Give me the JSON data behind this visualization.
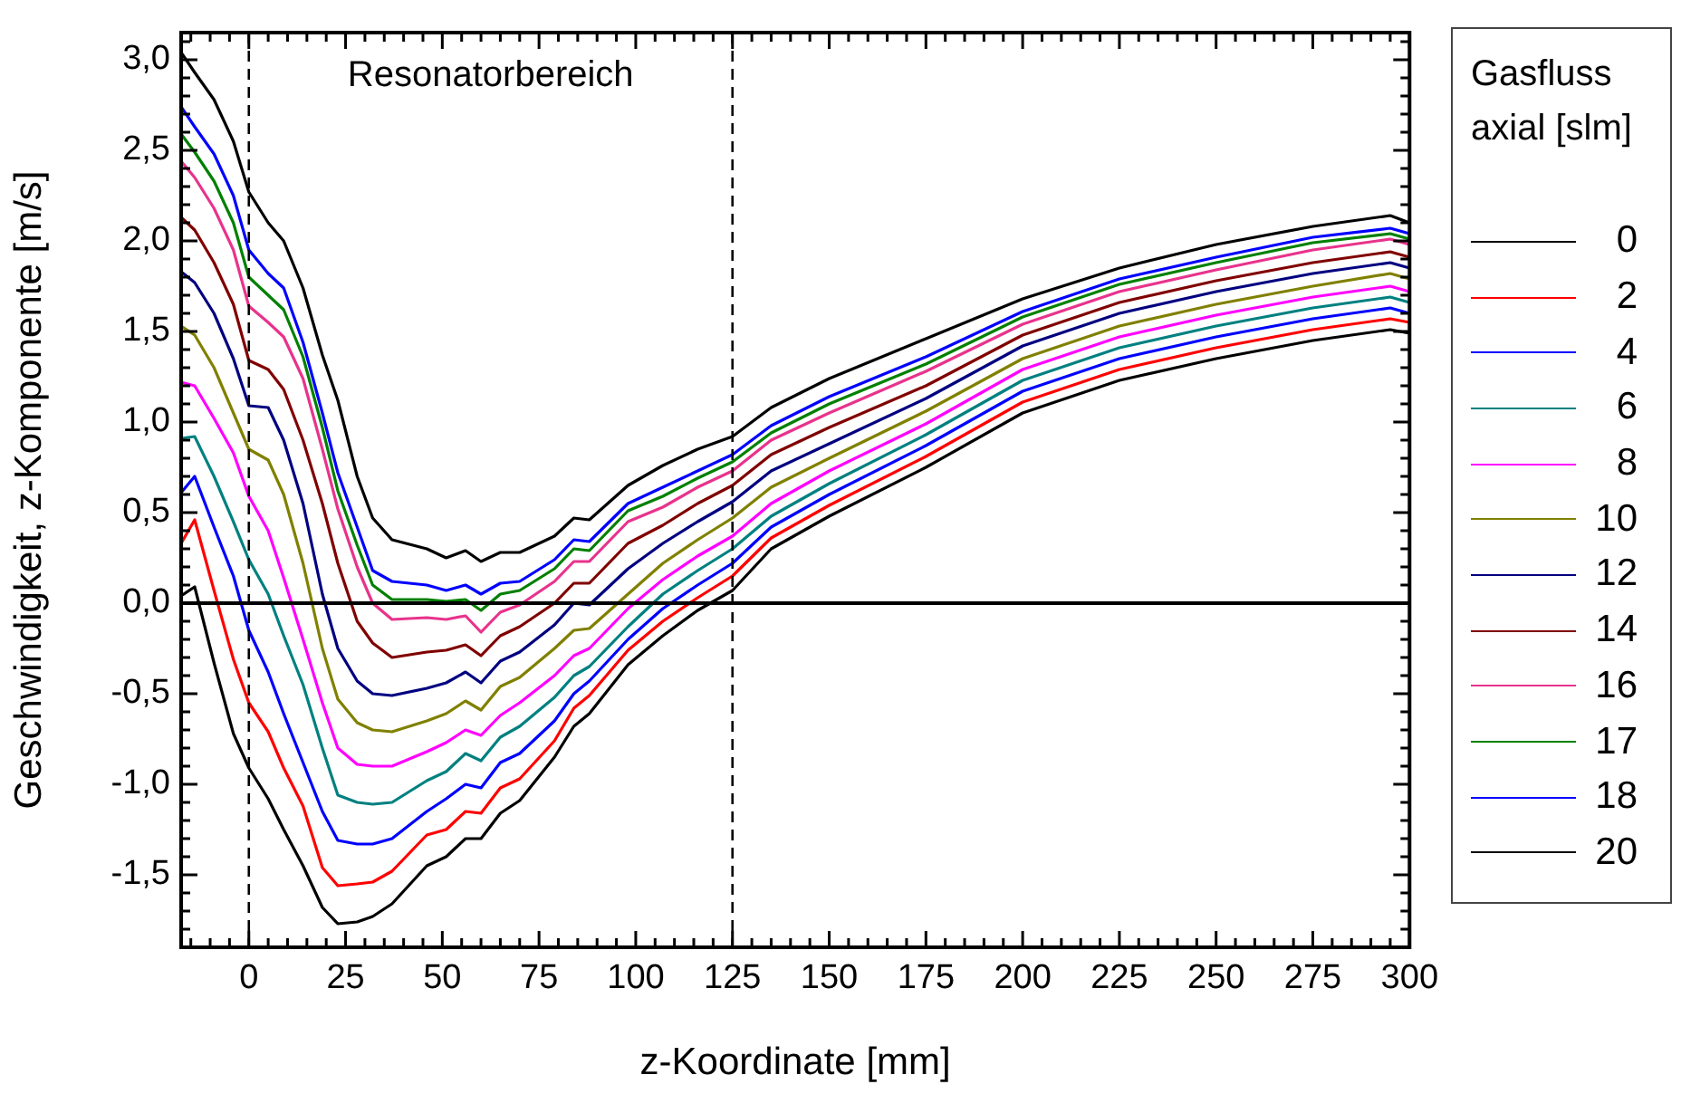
{
  "chart_data": {
    "type": "line",
    "xlabel": "z-Koordinate [mm]",
    "ylabel": "Geschwindigkeit, z-Komponente [m/s]",
    "legend_title": "Gasfluss axial [slm]",
    "legend": "right",
    "grid": false,
    "line_style": "solid",
    "marker": "none",
    "annotations": [
      "Resonatorbereich"
    ],
    "ref_lines": [
      {
        "axis": "x",
        "value": 0,
        "line_style": "dashed",
        "color": "#000000"
      },
      {
        "axis": "x",
        "value": 125,
        "line_style": "dashed",
        "color": "#000000"
      },
      {
        "axis": "y",
        "value": 0,
        "line_style": "solid",
        "color": "#000000"
      }
    ],
    "xlim": [
      -17.5,
      300
    ],
    "ylim": [
      -1.9,
      3.15
    ],
    "xticks": [
      {
        "value": -15,
        "label": null
      },
      {
        "value": -10,
        "label": null
      },
      {
        "value": -5,
        "label": null
      },
      0,
      {
        "value": 5,
        "label": null
      },
      {
        "value": 10,
        "label": null
      },
      {
        "value": 15,
        "label": null
      },
      {
        "value": 20,
        "label": null
      },
      25,
      {
        "value": 30,
        "label": null
      },
      {
        "value": 35,
        "label": null
      },
      {
        "value": 40,
        "label": null
      },
      {
        "value": 45,
        "label": null
      },
      50,
      {
        "value": 55,
        "label": null
      },
      {
        "value": 60,
        "label": null
      },
      {
        "value": 65,
        "label": null
      },
      {
        "value": 70,
        "label": null
      },
      75,
      {
        "value": 80,
        "label": null
      },
      {
        "value": 85,
        "label": null
      },
      {
        "value": 90,
        "label": null
      },
      {
        "value": 95,
        "label": null
      },
      100,
      {
        "value": 105,
        "label": null
      },
      {
        "value": 110,
        "label": null
      },
      {
        "value": 115,
        "label": null
      },
      {
        "value": 120,
        "label": null
      },
      125,
      {
        "value": 130,
        "label": null
      },
      {
        "value": 135,
        "label": null
      },
      {
        "value": 140,
        "label": null
      },
      {
        "value": 145,
        "label": null
      },
      150,
      {
        "value": 155,
        "label": null
      },
      {
        "value": 160,
        "label": null
      },
      {
        "value": 165,
        "label": null
      },
      {
        "value": 170,
        "label": null
      },
      175,
      {
        "value": 180,
        "label": null
      },
      {
        "value": 185,
        "label": null
      },
      {
        "value": 190,
        "label": null
      },
      {
        "value": 195,
        "label": null
      },
      200,
      {
        "value": 205,
        "label": null
      },
      {
        "value": 210,
        "label": null
      },
      {
        "value": 215,
        "label": null
      },
      {
        "value": 220,
        "label": null
      },
      225,
      {
        "value": 230,
        "label": null
      },
      {
        "value": 235,
        "label": null
      },
      {
        "value": 240,
        "label": null
      },
      {
        "value": 245,
        "label": null
      },
      250,
      {
        "value": 255,
        "label": null
      },
      {
        "value": 260,
        "label": null
      },
      {
        "value": 265,
        "label": null
      },
      {
        "value": 270,
        "label": null
      },
      275,
      {
        "value": 280,
        "label": null
      },
      {
        "value": 285,
        "label": null
      },
      {
        "value": 290,
        "label": null
      },
      {
        "value": 295,
        "label": null
      },
      300
    ],
    "yticks": [
      {
        "value": -1.9,
        "label": null
      },
      {
        "value": -1.8,
        "label": null
      },
      {
        "value": -1.7,
        "label": null
      },
      {
        "value": -1.6,
        "label": null
      },
      {
        "value": -1.5,
        "label": "-1,5"
      },
      {
        "value": -1.4,
        "label": null
      },
      {
        "value": -1.3,
        "label": null
      },
      {
        "value": -1.2,
        "label": null
      },
      {
        "value": -1.1,
        "label": null
      },
      {
        "value": -1.0,
        "label": "-1,0"
      },
      {
        "value": -0.9,
        "label": null
      },
      {
        "value": -0.8,
        "label": null
      },
      {
        "value": -0.7,
        "label": null
      },
      {
        "value": -0.6,
        "label": null
      },
      {
        "value": -0.5,
        "label": "-0,5"
      },
      {
        "value": -0.4,
        "label": null
      },
      {
        "value": -0.3,
        "label": null
      },
      {
        "value": -0.2,
        "label": null
      },
      {
        "value": -0.1,
        "label": null
      },
      {
        "value": 0,
        "label": "0,0"
      },
      {
        "value": 0.1,
        "label": null
      },
      {
        "value": 0.2,
        "label": null
      },
      {
        "value": 0.3,
        "label": null
      },
      {
        "value": 0.4,
        "label": null
      },
      {
        "value": 0.5,
        "label": "0,5"
      },
      {
        "value": 0.6,
        "label": null
      },
      {
        "value": 0.7,
        "label": null
      },
      {
        "value": 0.8,
        "label": null
      },
      {
        "value": 0.9,
        "label": null
      },
      {
        "value": 1.0,
        "label": "1,0"
      },
      {
        "value": 1.1,
        "label": null
      },
      {
        "value": 1.2,
        "label": null
      },
      {
        "value": 1.3,
        "label": null
      },
      {
        "value": 1.4,
        "label": null
      },
      {
        "value": 1.5,
        "label": "1,5"
      },
      {
        "value": 1.6,
        "label": null
      },
      {
        "value": 1.7,
        "label": null
      },
      {
        "value": 1.8,
        "label": null
      },
      {
        "value": 1.9,
        "label": null
      },
      {
        "value": 2.0,
        "label": "2,0"
      },
      {
        "value": 2.1,
        "label": null
      },
      {
        "value": 2.2,
        "label": null
      },
      {
        "value": 2.3,
        "label": null
      },
      {
        "value": 2.4,
        "label": null
      },
      {
        "value": 2.5,
        "label": "2,5"
      },
      {
        "value": 2.6,
        "label": null
      },
      {
        "value": 2.7,
        "label": null
      },
      {
        "value": 2.8,
        "label": null
      },
      {
        "value": 2.9,
        "label": null
      },
      {
        "value": 3.0,
        "label": "3,0"
      },
      {
        "value": 3.1,
        "label": null
      }
    ],
    "x": [
      -17.5,
      -14,
      -9,
      -4,
      0,
      5,
      9,
      14,
      19,
      23,
      28,
      32,
      37,
      46,
      51,
      56,
      60,
      65,
      70,
      79,
      84,
      88,
      98,
      107,
      116,
      125,
      135,
      150,
      175,
      200,
      225,
      250,
      275,
      295,
      300
    ],
    "series": [
      {
        "name": "0",
        "color": "#000000",
        "values": [
          0.04,
          0.09,
          -0.33,
          -0.72,
          -0.91,
          -1.08,
          -1.25,
          -1.45,
          -1.68,
          -1.77,
          -1.76,
          -1.73,
          -1.66,
          -1.45,
          -1.4,
          -1.3,
          -1.3,
          -1.16,
          -1.09,
          -0.85,
          -0.68,
          -0.61,
          -0.34,
          -0.18,
          -0.04,
          0.07,
          0.3,
          0.48,
          0.75,
          1.05,
          1.23,
          1.35,
          1.45,
          1.51,
          1.49
        ]
      },
      {
        "name": "2",
        "color": "#ff0000",
        "values": [
          0.33,
          0.46,
          0.07,
          -0.31,
          -0.55,
          -0.71,
          -0.91,
          -1.12,
          -1.46,
          -1.56,
          -1.55,
          -1.54,
          -1.48,
          -1.28,
          -1.25,
          -1.15,
          -1.16,
          -1.02,
          -0.97,
          -0.76,
          -0.58,
          -0.51,
          -0.26,
          -0.1,
          0.03,
          0.15,
          0.36,
          0.54,
          0.81,
          1.11,
          1.29,
          1.41,
          1.51,
          1.57,
          1.55
        ]
      },
      {
        "name": "4",
        "color": "#0000ff",
        "values": [
          0.61,
          0.7,
          0.42,
          0.15,
          -0.15,
          -0.38,
          -0.61,
          -0.88,
          -1.15,
          -1.31,
          -1.33,
          -1.33,
          -1.3,
          -1.15,
          -1.08,
          -1.0,
          -1.02,
          -0.88,
          -0.83,
          -0.65,
          -0.5,
          -0.43,
          -0.2,
          -0.03,
          0.1,
          0.22,
          0.42,
          0.6,
          0.87,
          1.17,
          1.35,
          1.47,
          1.57,
          1.63,
          1.6
        ]
      },
      {
        "name": "6",
        "color": "#008080",
        "values": [
          0.91,
          0.92,
          0.7,
          0.45,
          0.24,
          0.05,
          -0.18,
          -0.45,
          -0.8,
          -1.06,
          -1.1,
          -1.11,
          -1.1,
          -0.98,
          -0.93,
          -0.83,
          -0.87,
          -0.74,
          -0.68,
          -0.52,
          -0.4,
          -0.35,
          -0.13,
          0.05,
          0.18,
          0.3,
          0.48,
          0.66,
          0.93,
          1.23,
          1.41,
          1.53,
          1.63,
          1.69,
          1.66
        ]
      },
      {
        "name": "8",
        "color": "#ff00ff",
        "values": [
          1.22,
          1.2,
          1.02,
          0.83,
          0.59,
          0.4,
          0.14,
          -0.2,
          -0.55,
          -0.8,
          -0.89,
          -0.9,
          -0.9,
          -0.82,
          -0.77,
          -0.7,
          -0.73,
          -0.62,
          -0.55,
          -0.4,
          -0.29,
          -0.25,
          -0.03,
          0.13,
          0.26,
          0.37,
          0.55,
          0.73,
          0.99,
          1.29,
          1.47,
          1.59,
          1.69,
          1.75,
          1.72
        ]
      },
      {
        "name": "10",
        "color": "#808000",
        "values": [
          1.53,
          1.48,
          1.3,
          1.05,
          0.85,
          0.79,
          0.6,
          0.22,
          -0.25,
          -0.53,
          -0.66,
          -0.7,
          -0.71,
          -0.65,
          -0.61,
          -0.54,
          -0.59,
          -0.46,
          -0.41,
          -0.25,
          -0.15,
          -0.14,
          0.05,
          0.22,
          0.35,
          0.47,
          0.64,
          0.8,
          1.06,
          1.35,
          1.53,
          1.65,
          1.75,
          1.82,
          1.79
        ]
      },
      {
        "name": "12",
        "color": "#000080",
        "values": [
          1.83,
          1.77,
          1.6,
          1.35,
          1.09,
          1.08,
          0.9,
          0.55,
          0.05,
          -0.25,
          -0.43,
          -0.5,
          -0.51,
          -0.47,
          -0.44,
          -0.38,
          -0.44,
          -0.32,
          -0.27,
          -0.12,
          0.0,
          -0.01,
          0.19,
          0.33,
          0.45,
          0.56,
          0.73,
          0.88,
          1.13,
          1.42,
          1.6,
          1.72,
          1.82,
          1.88,
          1.85
        ]
      },
      {
        "name": "14",
        "color": "#800000",
        "values": [
          2.13,
          2.06,
          1.88,
          1.65,
          1.34,
          1.29,
          1.18,
          0.9,
          0.55,
          0.22,
          -0.1,
          -0.22,
          -0.3,
          -0.27,
          -0.26,
          -0.23,
          -0.29,
          -0.18,
          -0.13,
          0.0,
          0.11,
          0.11,
          0.33,
          0.43,
          0.55,
          0.65,
          0.82,
          0.97,
          1.2,
          1.48,
          1.66,
          1.78,
          1.88,
          1.94,
          1.91
        ]
      },
      {
        "name": "16",
        "color": "#e8338c",
        "values": [
          2.44,
          2.35,
          2.18,
          1.95,
          1.64,
          1.55,
          1.47,
          1.24,
          0.85,
          0.52,
          0.2,
          0.0,
          -0.09,
          -0.08,
          -0.09,
          -0.07,
          -0.16,
          -0.05,
          -0.01,
          0.12,
          0.23,
          0.23,
          0.45,
          0.53,
          0.64,
          0.73,
          0.9,
          1.05,
          1.28,
          1.54,
          1.72,
          1.84,
          1.95,
          2.01,
          1.98
        ]
      },
      {
        "name": "17",
        "color": "#008000",
        "values": [
          2.59,
          2.49,
          2.33,
          2.1,
          1.8,
          1.7,
          1.62,
          1.36,
          0.97,
          0.62,
          0.32,
          0.1,
          0.02,
          0.02,
          0.01,
          0.02,
          -0.04,
          0.05,
          0.07,
          0.19,
          0.3,
          0.29,
          0.51,
          0.59,
          0.69,
          0.78,
          0.94,
          1.1,
          1.32,
          1.58,
          1.76,
          1.88,
          1.99,
          2.04,
          2.01
        ]
      },
      {
        "name": "18",
        "color": "#0000ff",
        "values": [
          2.74,
          2.63,
          2.48,
          2.25,
          1.95,
          1.82,
          1.74,
          1.44,
          1.05,
          0.72,
          0.42,
          0.18,
          0.12,
          0.1,
          0.07,
          0.1,
          0.05,
          0.11,
          0.12,
          0.24,
          0.35,
          0.34,
          0.55,
          0.64,
          0.73,
          0.82,
          0.98,
          1.14,
          1.36,
          1.61,
          1.79,
          1.91,
          2.02,
          2.07,
          2.04
        ]
      },
      {
        "name": "20",
        "color": "#000000",
        "values": [
          3.04,
          2.93,
          2.78,
          2.55,
          2.27,
          2.1,
          2.0,
          1.74,
          1.37,
          1.12,
          0.7,
          0.47,
          0.35,
          0.3,
          0.25,
          0.29,
          0.23,
          0.28,
          0.28,
          0.37,
          0.47,
          0.46,
          0.65,
          0.76,
          0.85,
          0.92,
          1.08,
          1.24,
          1.46,
          1.68,
          1.85,
          1.98,
          2.08,
          2.14,
          2.1
        ]
      }
    ]
  }
}
